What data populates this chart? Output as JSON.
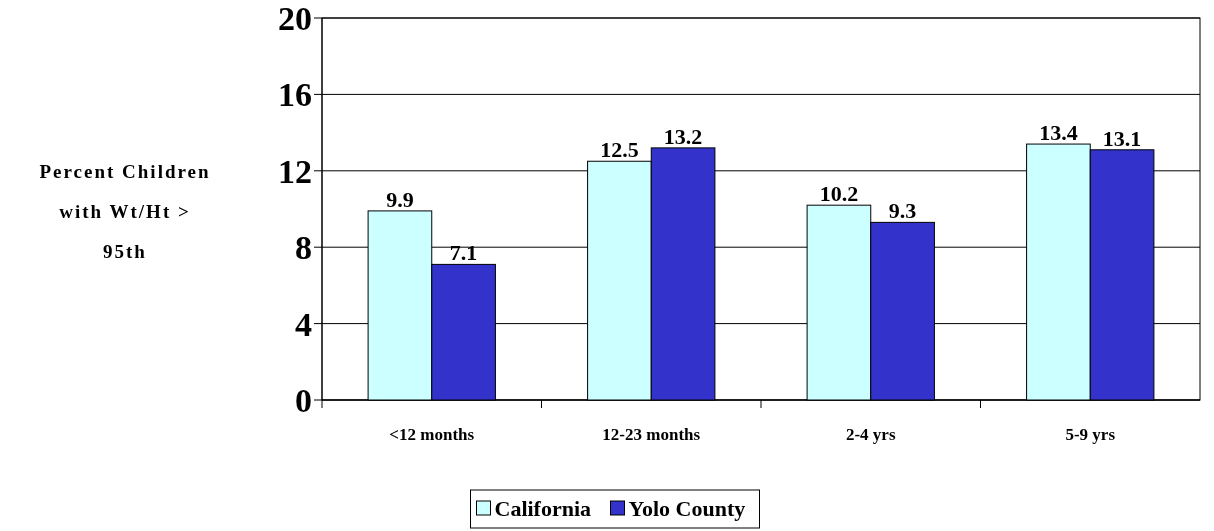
{
  "chart_data": {
    "type": "bar",
    "ylabel": "Percent Children with Wt/Ht > 95th",
    "categories": [
      "<12 months",
      "12-23 months",
      "2-4 yrs",
      "5-9 yrs"
    ],
    "series": [
      {
        "name": "California",
        "color": "#ccffff",
        "values": [
          9.9,
          12.5,
          10.2,
          13.4
        ]
      },
      {
        "name": "Yolo County",
        "color": "#3333cc",
        "values": [
          7.1,
          13.2,
          9.3,
          13.1
        ]
      }
    ],
    "ylim": [
      0,
      20
    ],
    "yticks": [
      0,
      4,
      8,
      12,
      16,
      20
    ],
    "grid": "y",
    "legend": "bottom",
    "data_labels": true
  }
}
